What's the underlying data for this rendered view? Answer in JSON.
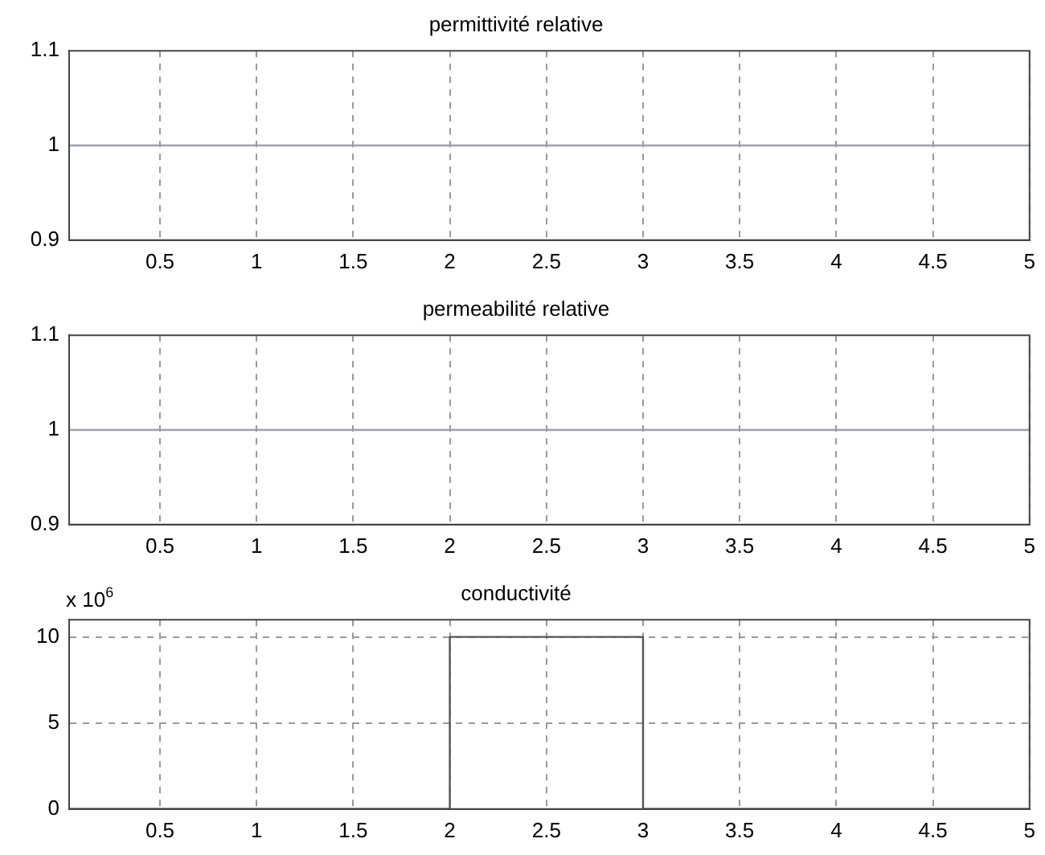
{
  "chart_data": [
    {
      "type": "line",
      "title": "permittivité relative",
      "x": [
        0.03,
        5
      ],
      "values": [
        1,
        1
      ],
      "color": "#9aa0a8",
      "xlim": [
        0.03,
        5
      ],
      "ylim": [
        0.9,
        1.1
      ],
      "xticks": [
        0.5,
        1,
        1.5,
        2,
        2.5,
        3,
        3.5,
        4,
        4.5,
        5
      ],
      "yticks": [
        0.9,
        1,
        1.1
      ],
      "grid": "x"
    },
    {
      "type": "line",
      "title": "permeabilité relative",
      "x": [
        0.03,
        5
      ],
      "values": [
        1,
        1
      ],
      "color": "#9aa0a8",
      "xlim": [
        0.03,
        5
      ],
      "ylim": [
        0.9,
        1.1
      ],
      "xticks": [
        0.5,
        1,
        1.5,
        2,
        2.5,
        3,
        3.5,
        4,
        4.5,
        5
      ],
      "yticks": [
        0.9,
        1,
        1.1
      ],
      "grid": "x"
    },
    {
      "type": "line",
      "title": "conductivité",
      "annotations": [
        "x 10$^{6}$"
      ],
      "x": [
        0.03,
        2,
        2,
        3,
        3,
        5
      ],
      "values": [
        0,
        0,
        10,
        10,
        0,
        0
      ],
      "color": "#555555",
      "xlim": [
        0.03,
        5
      ],
      "ylim": [
        0,
        11
      ],
      "xticks": [
        0.5,
        1,
        1.5,
        2,
        2.5,
        3,
        3.5,
        4,
        4.5,
        5
      ],
      "yticks": [
        0,
        5,
        10
      ],
      "grid": true
    }
  ]
}
